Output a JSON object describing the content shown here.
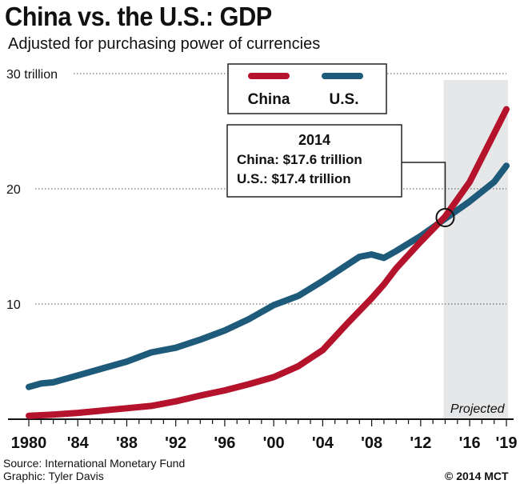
{
  "title": "China vs. the U.S.: GDP",
  "subtitle": "Adjusted for purchasing power of currencies",
  "source": "Source: International Monetary Fund",
  "graphic": "Graphic: Tyler Davis",
  "copyright": "© 2014 MCT",
  "colors": {
    "china": "#b5122b",
    "us": "#1e5a79",
    "grid": "#555555",
    "projected_band": "#e6e7e9"
  },
  "chart_data": {
    "type": "line",
    "x_tick_labels": [
      "1980",
      "'84",
      "'88",
      "'92",
      "'96",
      "'00",
      "'04",
      "'08",
      "'12",
      "'16",
      "'19"
    ],
    "y_tick_labels": [
      "30 trillion",
      "20",
      "10"
    ],
    "ylim": [
      0,
      30
    ],
    "xlim": [
      1980,
      2019
    ],
    "grid": "horizontal dotted",
    "legend": {
      "position": "top-center",
      "entries": [
        "China",
        "U.S."
      ]
    },
    "projected_label": "Projected",
    "projected_start": 2014,
    "annotation": {
      "year": "2014",
      "line1": "China: $17.6 trillion",
      "line2": "U.S.: $17.4 trillion",
      "x": 2014,
      "y": 17.5
    },
    "series": [
      {
        "name": "China",
        "x": [
          1980,
          1982,
          1984,
          1986,
          1988,
          1990,
          1992,
          1994,
          1996,
          1998,
          2000,
          2002,
          2004,
          2006,
          2008,
          2009,
          2010,
          2012,
          2014,
          2016,
          2018,
          2019
        ],
        "y": [
          0.3,
          0.4,
          0.55,
          0.75,
          0.95,
          1.15,
          1.55,
          2.05,
          2.5,
          3.05,
          3.65,
          4.6,
          6.0,
          8.3,
          10.5,
          11.7,
          13.1,
          15.4,
          17.6,
          20.6,
          24.8,
          26.9
        ]
      },
      {
        "name": "U.S.",
        "x": [
          1980,
          1981,
          1982,
          1984,
          1986,
          1988,
          1990,
          1992,
          1994,
          1996,
          1998,
          2000,
          2002,
          2004,
          2006,
          2007,
          2008,
          2009,
          2010,
          2012,
          2014,
          2016,
          2018,
          2019
        ],
        "y": [
          2.8,
          3.1,
          3.2,
          3.8,
          4.4,
          5.0,
          5.8,
          6.2,
          6.9,
          7.7,
          8.7,
          9.9,
          10.7,
          12.0,
          13.4,
          14.1,
          14.3,
          14.0,
          14.6,
          15.9,
          17.4,
          18.9,
          20.6,
          22.0
        ]
      }
    ]
  }
}
